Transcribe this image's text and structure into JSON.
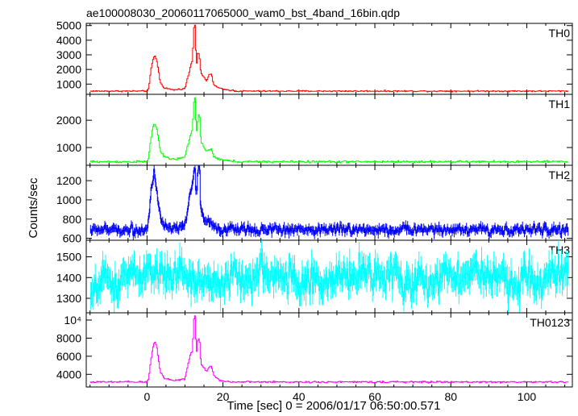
{
  "chart_data": {
    "type": "line",
    "title": "ae100008030_20060117065000_wam0_bst_4band_16bin.qdp",
    "xlabel": "Time [sec] 0 = 2006/01/17 06:50:00.571",
    "ylabel": "Counts/sec",
    "xlim": [
      -16,
      112
    ],
    "x_ticks": [
      0,
      20,
      40,
      60,
      80,
      100
    ],
    "x_tick_labels": [
      "0",
      "20",
      "40",
      "60",
      "80",
      "100"
    ],
    "grid": false,
    "panels": [
      {
        "name": "TH0",
        "color": "#ff0000",
        "ylim": [
          300,
          5150
        ],
        "y_ticks": [
          1000,
          2000,
          3000,
          4000,
          5000
        ],
        "y_tick_labels": [
          "1000",
          "2000",
          "3000",
          "4000",
          "5000"
        ],
        "baseline": 520,
        "noise": 35,
        "error_bar": 0,
        "peaks": [
          {
            "t": 0.0,
            "v": 520
          },
          {
            "t": 0.5,
            "v": 700
          },
          {
            "t": 1.0,
            "v": 1900
          },
          {
            "t": 1.5,
            "v": 2600
          },
          {
            "t": 2.0,
            "v": 2950
          },
          {
            "t": 2.5,
            "v": 2700
          },
          {
            "t": 3.0,
            "v": 2000
          },
          {
            "t": 3.5,
            "v": 1100
          },
          {
            "t": 4.5,
            "v": 750
          },
          {
            "t": 7.0,
            "v": 600
          },
          {
            "t": 10.0,
            "v": 700
          },
          {
            "t": 10.5,
            "v": 1200
          },
          {
            "t": 11.0,
            "v": 1700
          },
          {
            "t": 11.5,
            "v": 2300
          },
          {
            "t": 12.0,
            "v": 2600
          },
          {
            "t": 12.3,
            "v": 4800
          },
          {
            "t": 12.7,
            "v": 5100
          },
          {
            "t": 13.0,
            "v": 2100
          },
          {
            "t": 13.4,
            "v": 3200
          },
          {
            "t": 13.8,
            "v": 3000
          },
          {
            "t": 14.2,
            "v": 1700
          },
          {
            "t": 15.0,
            "v": 1500
          },
          {
            "t": 15.7,
            "v": 1200
          },
          {
            "t": 16.3,
            "v": 1600
          },
          {
            "t": 17.0,
            "v": 1700
          },
          {
            "t": 17.5,
            "v": 1000
          },
          {
            "t": 18.5,
            "v": 780
          },
          {
            "t": 20.0,
            "v": 640
          },
          {
            "t": 23.0,
            "v": 560
          }
        ]
      },
      {
        "name": "TH1",
        "color": "#00ff00",
        "ylim": [
          350,
          2950
        ],
        "y_ticks": [
          1000,
          2000
        ],
        "y_tick_labels": [
          "1000",
          "2000"
        ],
        "baseline": 480,
        "noise": 30,
        "error_bar": 0,
        "peaks": [
          {
            "t": 0.0,
            "v": 480
          },
          {
            "t": 0.5,
            "v": 650
          },
          {
            "t": 1.0,
            "v": 1300
          },
          {
            "t": 1.5,
            "v": 1700
          },
          {
            "t": 2.0,
            "v": 1900
          },
          {
            "t": 2.5,
            "v": 1750
          },
          {
            "t": 3.0,
            "v": 1350
          },
          {
            "t": 3.5,
            "v": 900
          },
          {
            "t": 4.5,
            "v": 650
          },
          {
            "t": 7.0,
            "v": 560
          },
          {
            "t": 10.0,
            "v": 640
          },
          {
            "t": 10.5,
            "v": 950
          },
          {
            "t": 11.0,
            "v": 1200
          },
          {
            "t": 11.5,
            "v": 1500
          },
          {
            "t": 12.0,
            "v": 1650
          },
          {
            "t": 12.3,
            "v": 2650
          },
          {
            "t": 12.7,
            "v": 2900
          },
          {
            "t": 13.0,
            "v": 1400
          },
          {
            "t": 13.4,
            "v": 2000
          },
          {
            "t": 13.8,
            "v": 2350
          },
          {
            "t": 14.2,
            "v": 1200
          },
          {
            "t": 15.0,
            "v": 1000
          },
          {
            "t": 15.7,
            "v": 850
          },
          {
            "t": 16.3,
            "v": 900
          },
          {
            "t": 17.0,
            "v": 950
          },
          {
            "t": 17.5,
            "v": 700
          },
          {
            "t": 18.5,
            "v": 600
          },
          {
            "t": 20.0,
            "v": 540
          },
          {
            "t": 23.0,
            "v": 500
          }
        ]
      },
      {
        "name": "TH2",
        "color": "#0000ff",
        "ylim": [
          580,
          1360
        ],
        "y_ticks": [
          600,
          800,
          1000,
          1200
        ],
        "y_tick_labels": [
          "600",
          "800",
          "1000",
          "1200"
        ],
        "baseline": 690,
        "noise": 35,
        "error_bar": 40,
        "peaks": [
          {
            "t": 0.0,
            "v": 690
          },
          {
            "t": 0.5,
            "v": 800
          },
          {
            "t": 1.0,
            "v": 1050
          },
          {
            "t": 1.5,
            "v": 1200
          },
          {
            "t": 2.0,
            "v": 1300
          },
          {
            "t": 2.5,
            "v": 1100
          },
          {
            "t": 3.0,
            "v": 950
          },
          {
            "t": 3.5,
            "v": 800
          },
          {
            "t": 4.5,
            "v": 720
          },
          {
            "t": 7.0,
            "v": 680
          },
          {
            "t": 10.0,
            "v": 720
          },
          {
            "t": 10.5,
            "v": 850
          },
          {
            "t": 11.0,
            "v": 950
          },
          {
            "t": 11.5,
            "v": 1100
          },
          {
            "t": 12.0,
            "v": 1150
          },
          {
            "t": 12.3,
            "v": 1330
          },
          {
            "t": 12.7,
            "v": 1360
          },
          {
            "t": 13.0,
            "v": 1000
          },
          {
            "t": 13.4,
            "v": 1320
          },
          {
            "t": 13.8,
            "v": 1350
          },
          {
            "t": 14.2,
            "v": 900
          },
          {
            "t": 15.0,
            "v": 820
          },
          {
            "t": 15.7,
            "v": 780
          },
          {
            "t": 16.3,
            "v": 780
          },
          {
            "t": 17.0,
            "v": 760
          },
          {
            "t": 17.5,
            "v": 720
          },
          {
            "t": 18.5,
            "v": 700
          },
          {
            "t": 20.0,
            "v": 690
          },
          {
            "t": 23.0,
            "v": 690
          }
        ]
      },
      {
        "name": "TH3",
        "color": "#00ffff",
        "ylim": [
          1230,
          1580
        ],
        "y_ticks": [
          1300,
          1400,
          1500
        ],
        "y_tick_labels": [
          "1300",
          "1400",
          "1500"
        ],
        "baseline": 1400,
        "noise": 55,
        "error_bar": 55,
        "peaks": []
      },
      {
        "name": "TH0123",
        "color": "#ff00ff",
        "ylim": [
          2600,
          10800
        ],
        "y_ticks": [
          4000,
          6000,
          8000,
          10000
        ],
        "y_tick_labels": [
          "4000",
          "6000",
          "8000",
          "10⁴"
        ],
        "baseline": 3150,
        "noise": 70,
        "error_bar": 0,
        "peaks": [
          {
            "t": 0.0,
            "v": 3150
          },
          {
            "t": 0.5,
            "v": 3600
          },
          {
            "t": 1.0,
            "v": 5500
          },
          {
            "t": 1.5,
            "v": 6800
          },
          {
            "t": 2.0,
            "v": 7700
          },
          {
            "t": 2.5,
            "v": 7200
          },
          {
            "t": 3.0,
            "v": 5800
          },
          {
            "t": 3.5,
            "v": 4300
          },
          {
            "t": 4.5,
            "v": 3600
          },
          {
            "t": 7.0,
            "v": 3300
          },
          {
            "t": 10.0,
            "v": 3500
          },
          {
            "t": 10.5,
            "v": 4500
          },
          {
            "t": 11.0,
            "v": 5500
          },
          {
            "t": 11.5,
            "v": 6300
          },
          {
            "t": 12.0,
            "v": 6500
          },
          {
            "t": 12.3,
            "v": 10000
          },
          {
            "t": 12.7,
            "v": 10600
          },
          {
            "t": 13.0,
            "v": 6000
          },
          {
            "t": 13.4,
            "v": 7800
          },
          {
            "t": 13.8,
            "v": 8000
          },
          {
            "t": 14.2,
            "v": 5200
          },
          {
            "t": 15.0,
            "v": 4700
          },
          {
            "t": 15.7,
            "v": 4300
          },
          {
            "t": 16.3,
            "v": 4800
          },
          {
            "t": 17.0,
            "v": 4900
          },
          {
            "t": 17.5,
            "v": 4000
          },
          {
            "t": 18.5,
            "v": 3500
          },
          {
            "t": 20.0,
            "v": 3250
          },
          {
            "t": 23.0,
            "v": 3150
          }
        ]
      }
    ]
  }
}
